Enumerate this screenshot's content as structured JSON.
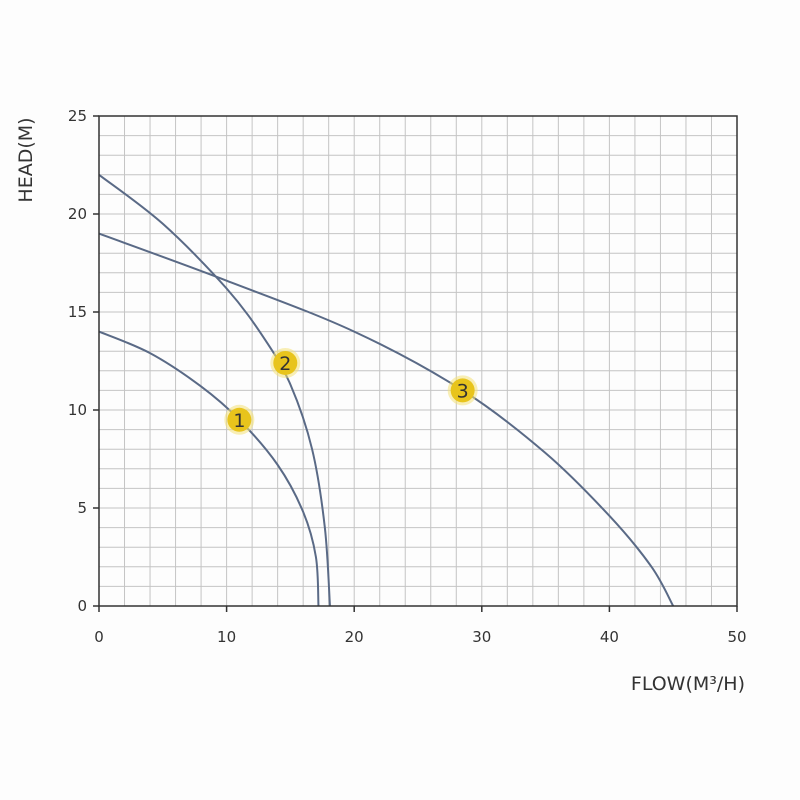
{
  "chart_data": {
    "type": "line",
    "xlabel": "FLOW(M³/H)",
    "ylabel": "HEAD(M)",
    "xlim": [
      0,
      50
    ],
    "ylim": [
      0,
      25
    ],
    "x_ticks": [
      0,
      10,
      20,
      30,
      40,
      50
    ],
    "y_ticks": [
      0,
      5,
      10,
      15,
      20,
      25
    ],
    "grid": true,
    "grid_minor_step": 2,
    "colors": {
      "curve": "#5a6a86",
      "grid": "#c4c4c4",
      "axis": "#333333",
      "marker_fill": "#e8c41c",
      "marker_glow": "#f4e27a"
    },
    "series": [
      {
        "label": "1",
        "points": [
          [
            0,
            14
          ],
          [
            4,
            12.9
          ],
          [
            8,
            11.2
          ],
          [
            11,
            9.5
          ],
          [
            14,
            7.2
          ],
          [
            16,
            4.8
          ],
          [
            17,
            2.5
          ],
          [
            17.2,
            0
          ]
        ],
        "marker": [
          11,
          9.5
        ]
      },
      {
        "label": "2",
        "points": [
          [
            0,
            22
          ],
          [
            5,
            19.5
          ],
          [
            10,
            16.2
          ],
          [
            13,
            13.6
          ],
          [
            15,
            11.3
          ],
          [
            16.7,
            8
          ],
          [
            17.7,
            4
          ],
          [
            18.1,
            0
          ]
        ],
        "marker": [
          14.6,
          12.4
        ]
      },
      {
        "label": "3",
        "points": [
          [
            0,
            19
          ],
          [
            10,
            16.6
          ],
          [
            20,
            14
          ],
          [
            28.5,
            11
          ],
          [
            35,
            7.8
          ],
          [
            40,
            4.6
          ],
          [
            43.3,
            2
          ],
          [
            45,
            0
          ]
        ],
        "marker": [
          28.5,
          11
        ]
      }
    ]
  }
}
